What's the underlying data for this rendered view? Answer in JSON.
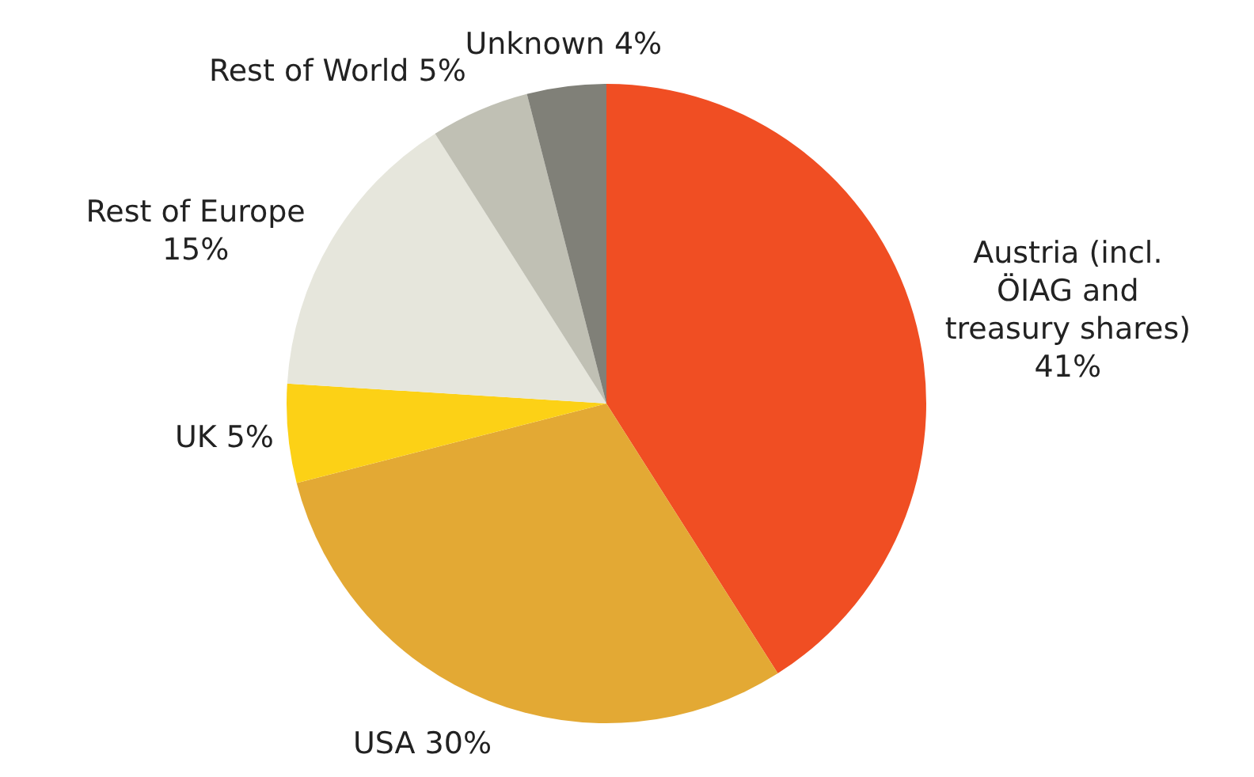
{
  "chart_data": {
    "type": "pie",
    "categories": [
      "Austria (incl. ÖIAG and treasury shares)",
      "USA",
      "UK",
      "Rest of Europe",
      "Rest of World",
      "Unknown"
    ],
    "values": [
      41,
      30,
      5,
      15,
      5,
      4
    ],
    "value_labels": [
      "41%",
      "30%",
      "5%",
      "15%",
      "5%",
      "4%"
    ],
    "colors": [
      "#f04e23",
      "#e3a934",
      "#fcd116",
      "#e6e6dc",
      "#c0c0b4",
      "#808078"
    ]
  }
}
